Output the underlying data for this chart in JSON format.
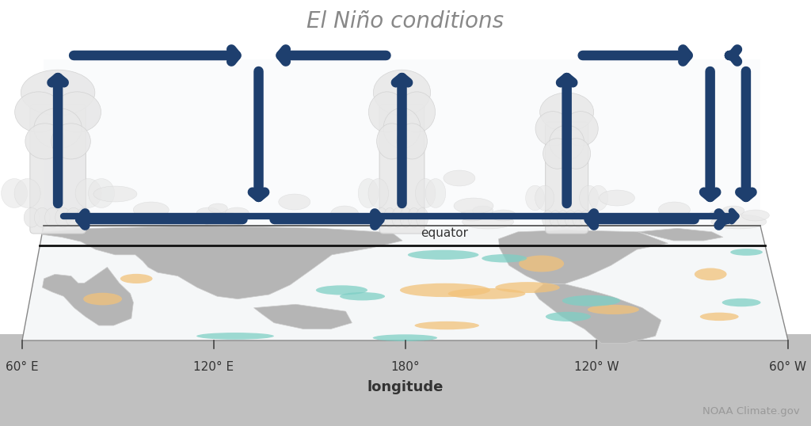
{
  "title": "El Niño conditions",
  "title_color": "#888888",
  "title_fontsize": 20,
  "background_color": "#ffffff",
  "arrow_color": "#1e3f6e",
  "xlabel": "longitude",
  "xtick_labels": [
    "60° E",
    "120° E",
    "180°",
    "120° W",
    "60° W"
  ],
  "equator_label": "equator",
  "credit": "NOAA Climate.gov",
  "ocean_color": "#f5f7f8",
  "land_color": "#b5b5b5",
  "warm_color": "#f2c27a",
  "cool_color": "#7ecfc5",
  "cloud_color": "#e8e8e8",
  "equator_line_color": "#e8a000",
  "gray_strip": "#c0c0c0",
  "map_shadow": "#d8d8d8",
  "atm_gradient_top": "#b8c8d8",
  "atm_gradient_bot": "#e8eef3"
}
